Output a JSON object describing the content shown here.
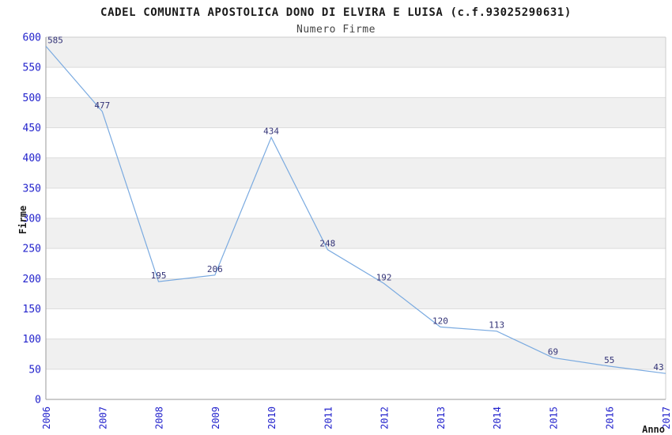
{
  "chart_data": {
    "type": "line",
    "title": "CADEL COMUNITA APOSTOLICA DONO DI ELVIRA E LUISA (c.f.93025290631)",
    "subtitle": "Numero Firme",
    "xlabel": "Anno",
    "ylabel": "Firme",
    "categories": [
      "2006",
      "2007",
      "2008",
      "2009",
      "2010",
      "2011",
      "2012",
      "2013",
      "2014",
      "2015",
      "2016",
      "2017"
    ],
    "values": [
      585,
      477,
      195,
      206,
      434,
      248,
      192,
      120,
      113,
      69,
      55,
      43
    ],
    "ylim": [
      0,
      600
    ],
    "ytick_step": 50,
    "ytick_labels": [
      "0",
      "50",
      "100",
      "150",
      "200",
      "250",
      "300",
      "350",
      "400",
      "450",
      "500",
      "550",
      "600"
    ],
    "grid": "horizontal-bands",
    "legend": "none",
    "colors": {
      "line": "#7aaae0",
      "tick_label": "#2222cc",
      "data_label": "#333377",
      "band_gray": "#f0f0f0",
      "band_white": "#ffffff",
      "gridline": "#dcdcdc",
      "axis": "#999999",
      "border": "#cccccc",
      "title": "#1a1a1a",
      "subtitle": "#444444"
    }
  }
}
